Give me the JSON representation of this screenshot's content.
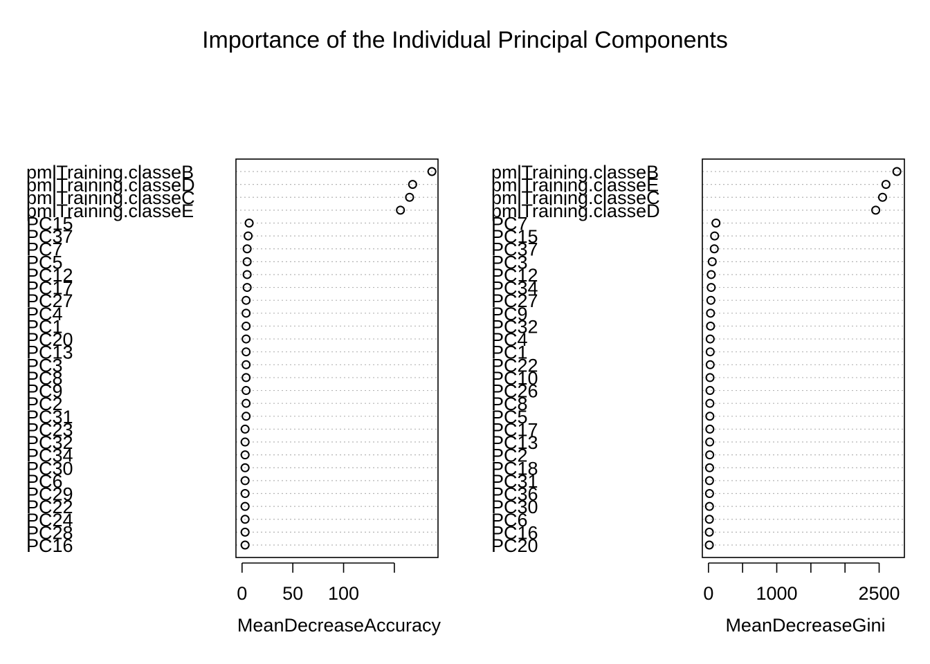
{
  "title": "Importance of the Individual Principal Components",
  "colors": {
    "foreground": "#000000",
    "guide": "#b3b3b3",
    "background": "#ffffff"
  },
  "chart_data": [
    {
      "type": "scatter",
      "variant": "dotchart",
      "title": "",
      "xlabel": "MeanDecreaseAccuracy",
      "ylabel": "",
      "xlim": [
        -6,
        193
      ],
      "xticks": [
        0,
        50,
        100,
        150
      ],
      "xticklabels": [
        "0",
        "50",
        "100",
        ""
      ],
      "grid": "dotted horizontal guide per row",
      "categories": [
        "pmlTraining.classeB",
        "pmlTraining.classeD",
        "pmlTraining.classeC",
        "pmlTraining.classeE",
        "PC15",
        "PC37",
        "PC7",
        "PC5",
        "PC12",
        "PC17",
        "PC27",
        "PC4",
        "PC1",
        "PC20",
        "PC13",
        "PC3",
        "PC8",
        "PC9",
        "PC2",
        "PC31",
        "PC23",
        "PC32",
        "PC34",
        "PC30",
        "PC6",
        "PC29",
        "PC22",
        "PC24",
        "PC28",
        "PC16"
      ],
      "values": [
        187,
        168,
        165,
        156,
        7,
        6,
        5,
        5,
        5,
        5,
        4,
        4,
        4,
        4,
        4,
        4,
        4,
        4,
        4,
        4,
        3,
        3,
        3,
        3,
        3,
        3,
        3,
        3,
        3,
        3
      ]
    },
    {
      "type": "scatter",
      "variant": "dotchart",
      "title": "",
      "xlabel": "MeanDecreaseGini",
      "ylabel": "",
      "xlim": [
        -90,
        2870
      ],
      "xticks": [
        0,
        500,
        1000,
        1500,
        2000,
        2500
      ],
      "xticklabels": [
        "0",
        "",
        "1000",
        "",
        "",
        "2500"
      ],
      "grid": "dotted horizontal guide per row",
      "categories": [
        "pmlTraining.classeB",
        "pmlTraining.classeE",
        "pmlTraining.classeC",
        "pmlTraining.classeD",
        "PC7",
        "PC15",
        "PC37",
        "PC3",
        "PC12",
        "PC34",
        "PC27",
        "PC9",
        "PC32",
        "PC4",
        "PC1",
        "PC22",
        "PC10",
        "PC26",
        "PC8",
        "PC5",
        "PC17",
        "PC13",
        "PC2",
        "PC18",
        "PC31",
        "PC36",
        "PC30",
        "PC6",
        "PC16",
        "PC20"
      ],
      "values": [
        2760,
        2600,
        2550,
        2450,
        110,
        90,
        85,
        55,
        40,
        40,
        35,
        30,
        30,
        25,
        25,
        25,
        22,
        22,
        20,
        20,
        20,
        18,
        18,
        16,
        15,
        15,
        14,
        13,
        12,
        12
      ]
    }
  ]
}
